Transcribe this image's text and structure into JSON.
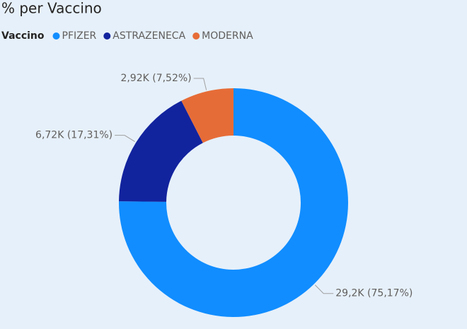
{
  "chart_data": {
    "type": "donut",
    "title": "% per Vaccino",
    "legend_title": "Vaccino",
    "categories": [
      "PFIZER",
      "ASTRAZENECA",
      "MODERNA"
    ],
    "values": [
      29200,
      6720,
      2920
    ],
    "value_labels": [
      "29,2K (75,17%)",
      "6,72K (17,31%)",
      "2,92K (7,52%)"
    ],
    "colors": [
      "#118dff",
      "#12239e",
      "#e66c37"
    ],
    "legend": "top-left"
  }
}
